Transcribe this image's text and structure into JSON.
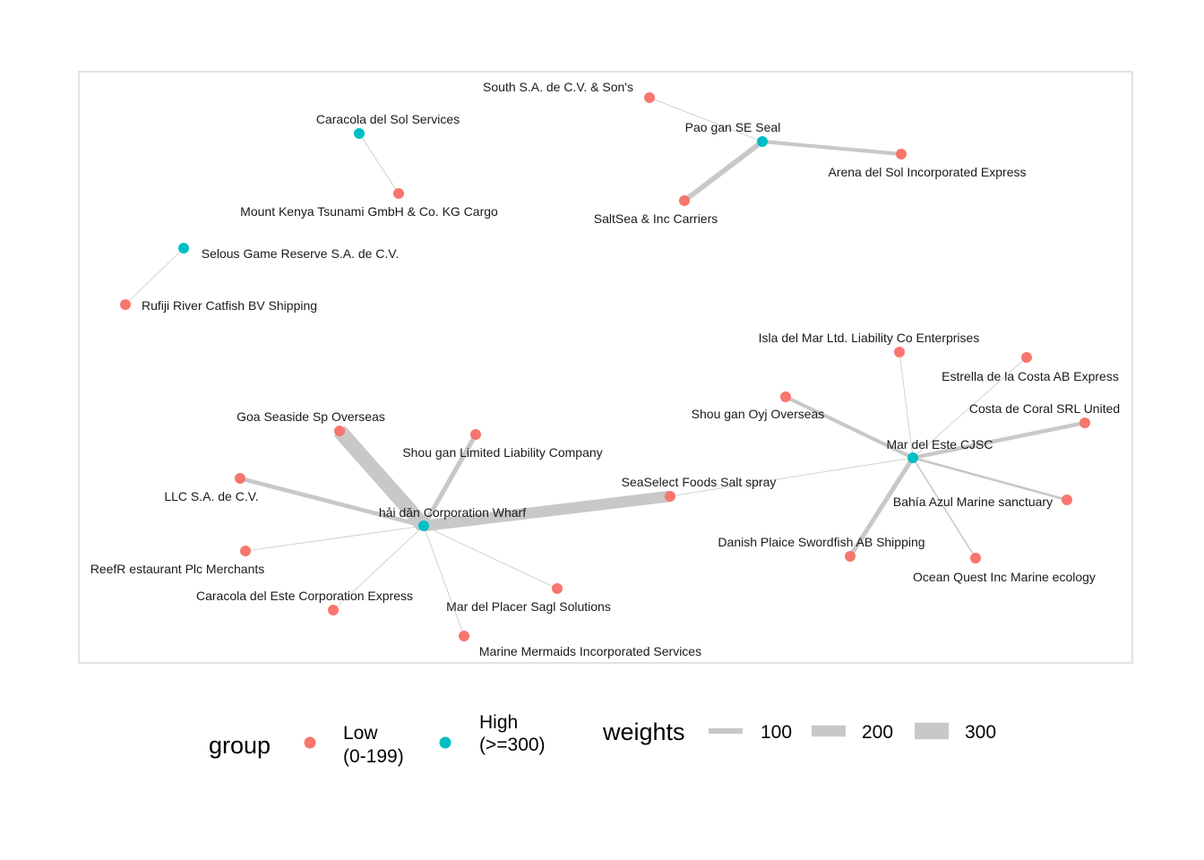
{
  "colors": {
    "low": "#F8766D",
    "high": "#00BFC4",
    "edge": "#c8c8c8",
    "panel_border": "#cfcfcf"
  },
  "nodes": [
    {
      "id": "south_sa",
      "label": "South S.A. de C.V. & Son's",
      "group": "low"
    },
    {
      "id": "pao_gan",
      "label": "Pao gan SE Seal",
      "group": "high"
    },
    {
      "id": "arena_sol",
      "label": "Arena del Sol Incorporated Express",
      "group": "low"
    },
    {
      "id": "saltsea",
      "label": "SaltSea & Inc Carriers",
      "group": "low"
    },
    {
      "id": "caracola_sol",
      "label": "Caracola del Sol Services",
      "group": "high"
    },
    {
      "id": "mount_kenya",
      "label": "Mount Kenya  Tsunami GmbH & Co. KG Cargo",
      "group": "low"
    },
    {
      "id": "selous",
      "label": "Selous Game Reserve  S.A. de C.V.",
      "group": "high"
    },
    {
      "id": "rufiji",
      "label": "Rufiji River  Catfish BV Shipping",
      "group": "low"
    },
    {
      "id": "isla_mar",
      "label": "Isla del Mar Ltd. Liability Co Enterprises",
      "group": "low"
    },
    {
      "id": "estrella",
      "label": "Estrella de la Costa AB Express",
      "group": "low"
    },
    {
      "id": "costa_coral",
      "label": "Costa de Coral SRL United",
      "group": "low"
    },
    {
      "id": "shou_oyj",
      "label": "Shou gan  Oyj Overseas",
      "group": "low"
    },
    {
      "id": "mar_este",
      "label": "Mar del Este CJSC",
      "group": "high"
    },
    {
      "id": "bahia",
      "label": "Bahía Azul Marine sanctuary",
      "group": "low"
    },
    {
      "id": "danish",
      "label": "Danish Plaice Swordfish AB Shipping",
      "group": "low"
    },
    {
      "id": "ocean_quest",
      "label": "Ocean Quest Inc Marine ecology",
      "group": "low"
    },
    {
      "id": "goa",
      "label": "Goa   Seaside Sp Overseas",
      "group": "low"
    },
    {
      "id": "shou_llc",
      "label": "Shou gan  Limited Liability Company",
      "group": "low"
    },
    {
      "id": "llc_sa",
      "label": "LLC S.A. de C.V.",
      "group": "low"
    },
    {
      "id": "seaselect",
      "label": "SeaSelect Foods Salt spray",
      "group": "low"
    },
    {
      "id": "hai_dan",
      "label": "hải dăn Corporation Wharf",
      "group": "high"
    },
    {
      "id": "reefr",
      "label": "ReefR estaurant Plc Merchants",
      "group": "low"
    },
    {
      "id": "caracola_este",
      "label": "Caracola del Este Corporation Express",
      "group": "low"
    },
    {
      "id": "mar_placer",
      "label": "Mar del Placer Sagl Solutions",
      "group": "low"
    },
    {
      "id": "marine_mermaids",
      "label": "Marine Mermaids Incorporated Services",
      "group": "low"
    }
  ],
  "edges": [
    {
      "source": "south_sa",
      "target": "pao_gan",
      "weight": 15
    },
    {
      "source": "pao_gan",
      "target": "arena_sol",
      "weight": 80
    },
    {
      "source": "pao_gan",
      "target": "saltsea",
      "weight": 110
    },
    {
      "source": "caracola_sol",
      "target": "mount_kenya",
      "weight": 15
    },
    {
      "source": "selous",
      "target": "rufiji",
      "weight": 15
    },
    {
      "source": "isla_mar",
      "target": "mar_este",
      "weight": 15
    },
    {
      "source": "estrella",
      "target": "mar_este",
      "weight": 15
    },
    {
      "source": "costa_coral",
      "target": "mar_este",
      "weight": 85
    },
    {
      "source": "shou_oyj",
      "target": "mar_este",
      "weight": 80
    },
    {
      "source": "bahia",
      "target": "mar_este",
      "weight": 50
    },
    {
      "source": "danish",
      "target": "mar_este",
      "weight": 95
    },
    {
      "source": "ocean_quest",
      "target": "mar_este",
      "weight": 30
    },
    {
      "source": "seaselect",
      "target": "mar_este",
      "weight": 15
    },
    {
      "source": "goa",
      "target": "hai_dan",
      "weight": 320
    },
    {
      "source": "shou_llc",
      "target": "hai_dan",
      "weight": 100
    },
    {
      "source": "llc_sa",
      "target": "hai_dan",
      "weight": 90
    },
    {
      "source": "seaselect",
      "target": "hai_dan",
      "weight": 240
    },
    {
      "source": "reefr",
      "target": "hai_dan",
      "weight": 15
    },
    {
      "source": "caracola_este",
      "target": "hai_dan",
      "weight": 15
    },
    {
      "source": "mar_placer",
      "target": "hai_dan",
      "weight": 15
    },
    {
      "source": "marine_mermaids",
      "target": "hai_dan",
      "weight": 15
    }
  ],
  "legend": {
    "group_title": "group",
    "low_line1": "Low",
    "low_line2": "(0-199)",
    "high_line1": "High",
    "high_line2": "(>=300)",
    "weights_title": "weights",
    "weight_keys": [
      {
        "label": "100",
        "value": 100
      },
      {
        "label": "200",
        "value": 200
      },
      {
        "label": "300",
        "value": 300
      }
    ]
  }
}
